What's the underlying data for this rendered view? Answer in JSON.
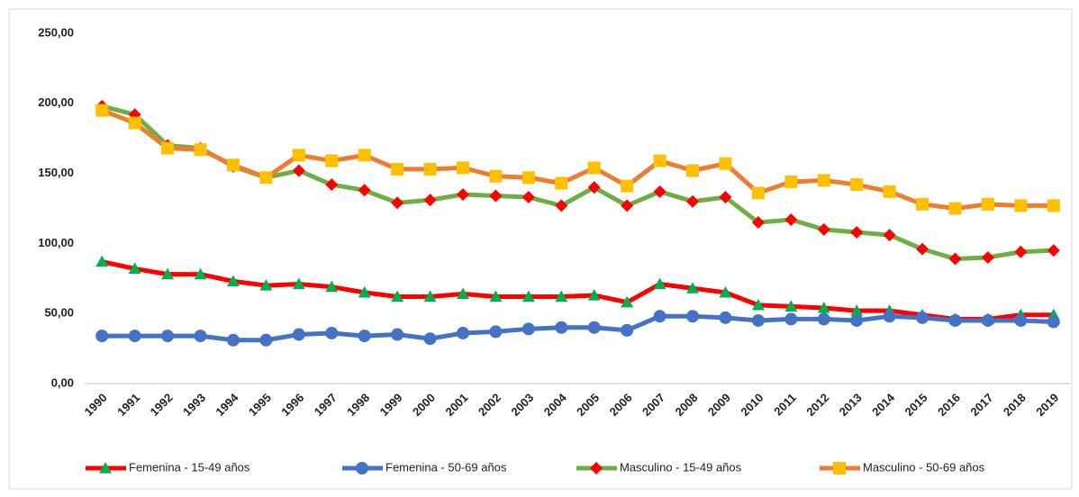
{
  "chart_data": {
    "type": "line",
    "categories": [
      "1990",
      "1991",
      "1992",
      "1993",
      "1994",
      "1995",
      "1996",
      "1997",
      "1998",
      "1999",
      "2000",
      "2001",
      "2002",
      "2003",
      "2004",
      "2005",
      "2006",
      "2007",
      "2008",
      "2009",
      "2010",
      "2011",
      "2012",
      "2013",
      "2014",
      "2015",
      "2016",
      "2017",
      "2018",
      "2019"
    ],
    "series": [
      {
        "name": "Femenina - 15-49 años",
        "color": "#ff0000",
        "marker": "triangle",
        "marker_color": "#00b050",
        "values": [
          87,
          82,
          78,
          78,
          73,
          70,
          71,
          69,
          65,
          62,
          62,
          64,
          62,
          62,
          62,
          63,
          58,
          71,
          68,
          65,
          56,
          55,
          54,
          52,
          52,
          49,
          46,
          46,
          49,
          49
        ]
      },
      {
        "name": "Femenina - 50-69 años",
        "color": "#4472c4",
        "marker": "circle",
        "marker_color": "#4472c4",
        "values": [
          34,
          34,
          34,
          34,
          31,
          31,
          35,
          36,
          34,
          35,
          32,
          36,
          37,
          39,
          40,
          40,
          38,
          48,
          48,
          47,
          45,
          46,
          46,
          45,
          48,
          47,
          45,
          45,
          45,
          44
        ]
      },
      {
        "name": "Masculino - 15-49 años",
        "color": "#70ad47",
        "marker": "diamond",
        "marker_color": "#ff0000",
        "values": [
          198,
          192,
          170,
          168,
          155,
          147,
          152,
          142,
          138,
          129,
          131,
          135,
          134,
          133,
          127,
          140,
          127,
          137,
          130,
          133,
          115,
          117,
          110,
          108,
          106,
          96,
          89,
          90,
          94,
          95
        ]
      },
      {
        "name": "Masculino - 50-69 años",
        "color": "#ed7d31",
        "marker": "square",
        "marker_color": "#ffc000",
        "values": [
          195,
          186,
          168,
          167,
          156,
          147,
          163,
          159,
          163,
          153,
          153,
          154,
          148,
          147,
          143,
          154,
          141,
          159,
          152,
          157,
          136,
          144,
          145,
          142,
          137,
          128,
          125,
          128,
          127,
          127
        ]
      }
    ],
    "ylim": [
      0,
      250
    ],
    "yticks": [
      {
        "value": 0,
        "label": "0,00"
      },
      {
        "value": 50,
        "label": "50,00"
      },
      {
        "value": 100,
        "label": "100,00"
      },
      {
        "value": 150,
        "label": "150,00"
      },
      {
        "value": 200,
        "label": "200,00"
      },
      {
        "value": 250,
        "label": "250,00"
      }
    ],
    "grid": false,
    "legend": "bottom"
  }
}
